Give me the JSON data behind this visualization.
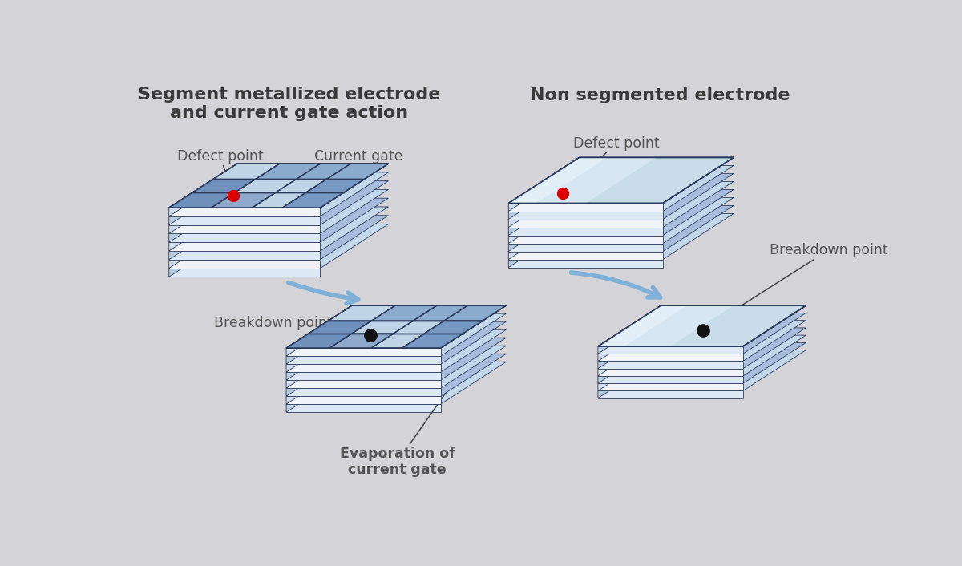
{
  "bg_color": "#d4d4d8",
  "title_left": "Segment metallized electrode\nand current gate action",
  "title_right": "Non segmented electrode",
  "label_defect_point": "Defect point",
  "label_current_gate": "Current gate",
  "label_breakdown_left": "Breakdown point",
  "label_breakdown_right": "Breakdown point",
  "label_evaporation": "Evaporation of\ncurrent gate",
  "title_color": "#3a3a3a",
  "label_color": "#555555",
  "arrow_color": "#7fb0d8",
  "line_color": "#2a3a5a",
  "red_dot_color": "#dd0000",
  "black_dot_color": "#111111",
  "title_fontsize": 16,
  "label_fontsize": 12.5
}
